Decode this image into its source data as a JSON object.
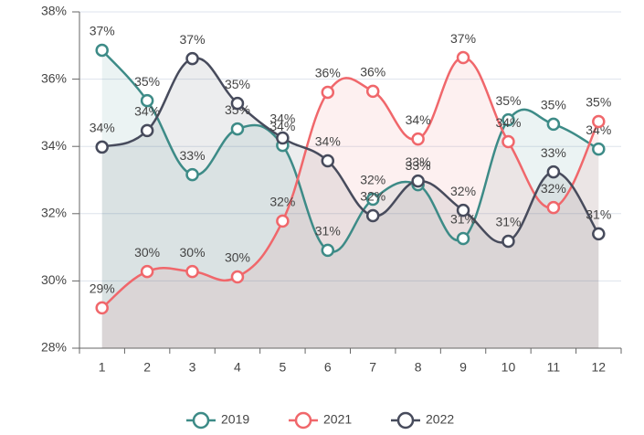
{
  "chart_data": {
    "type": "line",
    "categories": [
      "1",
      "2",
      "3",
      "4",
      "5",
      "6",
      "7",
      "8",
      "9",
      "10",
      "11",
      "12"
    ],
    "series": [
      {
        "name": "2019",
        "color": "#3d8b87",
        "values": [
          36.86,
          35.36,
          33.16,
          34.52,
          34.03,
          30.91,
          32.43,
          32.86,
          31.26,
          34.79,
          34.66,
          33.92
        ],
        "value_labels": [
          "37%",
          "35%",
          "33%",
          "35%",
          "34%",
          "31%",
          "32%",
          "33%",
          "31%",
          "35%",
          "35%",
          "34%"
        ]
      },
      {
        "name": "2021",
        "color": "#f0676b",
        "values": [
          29.2,
          30.28,
          30.28,
          30.12,
          31.78,
          35.61,
          35.64,
          34.22,
          36.64,
          34.14,
          32.18,
          34.74
        ],
        "value_labels": [
          "29%",
          "30%",
          "30%",
          "30%",
          "32%",
          "36%",
          "36%",
          "34%",
          "37%",
          "34%",
          "32%",
          "35%"
        ]
      },
      {
        "name": "2022",
        "color": "#474b5c",
        "values": [
          33.98,
          34.47,
          36.61,
          35.28,
          34.25,
          33.57,
          31.94,
          32.97,
          32.1,
          31.18,
          33.24,
          31.4
        ],
        "value_labels": [
          "34%",
          "34%",
          "37%",
          "35%",
          "34%",
          "34%",
          "32%",
          "33%",
          "32%",
          "31%",
          "33%",
          "31%"
        ]
      }
    ],
    "ylim": [
      28,
      38
    ],
    "yticks": [
      {
        "value": 28,
        "label": "28%"
      },
      {
        "value": 30,
        "label": "30%"
      },
      {
        "value": 32,
        "label": "32%"
      },
      {
        "value": 34,
        "label": "34%"
      },
      {
        "value": 36,
        "label": "36%"
      },
      {
        "value": 38,
        "label": "38%"
      }
    ],
    "grid": true,
    "legend": "bottom"
  }
}
